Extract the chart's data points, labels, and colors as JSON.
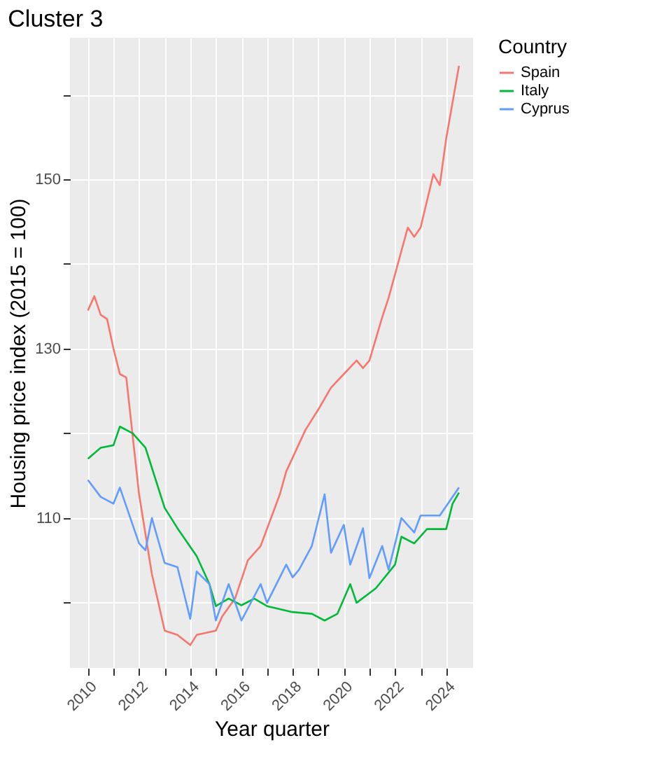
{
  "chart_data": {
    "type": "line",
    "title": "Cluster 3",
    "xlabel": "Year quarter",
    "ylabel": "Housing price index (2015 = 100)",
    "legend_title": "Country",
    "legend": "right",
    "grid": true,
    "line_style": "solid",
    "marker": "none",
    "xlim": [
      2009.3,
      2025.05
    ],
    "ylim": [
      92.3,
      166.7
    ],
    "xticks": [
      2010,
      {
        "value": 2011,
        "label": null
      },
      2012,
      {
        "value": 2013,
        "label": null
      },
      2014,
      {
        "value": 2015,
        "label": null
      },
      2016,
      {
        "value": 2017,
        "label": null
      },
      2018,
      {
        "value": 2019,
        "label": null
      },
      2020,
      {
        "value": 2021,
        "label": null
      },
      2022,
      {
        "value": 2023,
        "label": null
      },
      2024
    ],
    "yticks": [
      {
        "value": 100,
        "label": null
      },
      110,
      {
        "value": 120,
        "label": null
      },
      130,
      {
        "value": 140,
        "label": null
      },
      150,
      {
        "value": 160,
        "label": null
      }
    ],
    "series": [
      {
        "name": "Spain",
        "color": "#f8766d",
        "x": [
          2010.0,
          2010.25,
          2010.5,
          2010.75,
          2011.0,
          2011.25,
          2011.5,
          2012.0,
          2012.5,
          2013.0,
          2013.5,
          2014.0,
          2014.25,
          2015.0,
          2015.25,
          2015.75,
          2016.25,
          2016.75,
          2017.5,
          2017.75,
          2018.5,
          2019.0,
          2019.5,
          2020.0,
          2020.5,
          2020.75,
          2021.0,
          2021.5,
          2021.75,
          2022.5,
          2022.75,
          2023.0,
          2023.5,
          2023.75,
          2024.0,
          2024.5
        ],
        "values": [
          134.5,
          136.2,
          134,
          133.5,
          130,
          127,
          126.6,
          112.8,
          103.4,
          96.7,
          96.2,
          95,
          96.2,
          96.7,
          98.4,
          100.5,
          105,
          106.7,
          112.8,
          115.5,
          120.4,
          122.8,
          125.4,
          127,
          128.6,
          127.7,
          128.6,
          133.7,
          136,
          144.3,
          143.2,
          144.3,
          150.6,
          149.3,
          154.8,
          163.4
        ]
      },
      {
        "name": "Italy",
        "color": "#00ba38",
        "x": [
          2010,
          2010.5,
          2011,
          2011.25,
          2011.75,
          2012.25,
          2013,
          2013.5,
          2014.25,
          2014.75,
          2015,
          2015.5,
          2016,
          2016.5,
          2017,
          2018,
          2018.75,
          2019.25,
          2019.75,
          2020.25,
          2020.5,
          2021.25,
          2022,
          2022.25,
          2022.75,
          2023.25,
          2024,
          2024.25,
          2024.5
        ],
        "values": [
          117,
          118.3,
          118.6,
          120.8,
          120,
          118.3,
          111.2,
          108.8,
          105.5,
          102.2,
          99.6,
          100.5,
          99.7,
          100.5,
          99.6,
          98.9,
          98.7,
          97.9,
          98.7,
          102.2,
          100,
          101.7,
          104.5,
          107.8,
          107,
          108.7,
          108.7,
          111.7,
          113
        ]
      },
      {
        "name": "Cyprus",
        "color": "#619cff",
        "x": [
          2010,
          2010.5,
          2011,
          2011.25,
          2012,
          2012.25,
          2012.5,
          2013,
          2013.5,
          2014,
          2014.25,
          2014.75,
          2015,
          2015.5,
          2016,
          2016.75,
          2017,
          2017.75,
          2018,
          2018.25,
          2018.75,
          2019.25,
          2019.5,
          2020,
          2020.25,
          2020.75,
          2021,
          2021.5,
          2021.75,
          2022.25,
          2022.75,
          2023,
          2023.75,
          2024.5
        ],
        "values": [
          114.5,
          112.5,
          111.7,
          113.6,
          107,
          106.2,
          110,
          104.7,
          104.2,
          98.1,
          103.7,
          102.2,
          97.9,
          102.2,
          97.9,
          102.2,
          100,
          104.5,
          103,
          103.9,
          106.7,
          112.8,
          105.9,
          109.2,
          104.5,
          108.8,
          102.9,
          106.7,
          103.9,
          110,
          108.3,
          110.3,
          110.3,
          113.6
        ]
      }
    ]
  }
}
